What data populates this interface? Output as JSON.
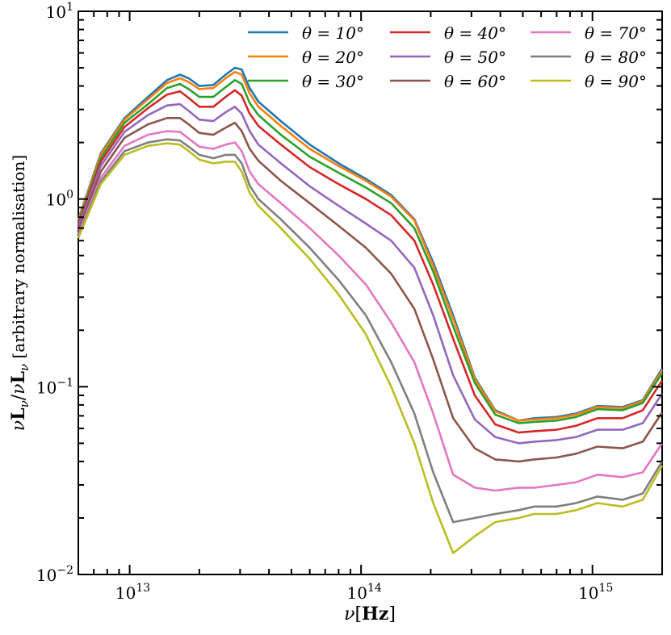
{
  "chart_data": {
    "type": "line",
    "xscale": "log",
    "yscale": "log",
    "xlim": [
      6000000000000,
      2000000000000000
    ],
    "ylim": [
      0.01,
      10
    ],
    "xlabel": "ν[Hz]",
    "ylabel": "νLν/νLν [arbitrary normalisation]",
    "x_ticks": [
      {
        "value": 10000000000000,
        "base": "10",
        "exp": "13"
      },
      {
        "value": 100000000000000,
        "base": "10",
        "exp": "14"
      },
      {
        "value": 1000000000000000,
        "base": "10",
        "exp": "15"
      }
    ],
    "y_ticks": [
      {
        "value": 0.01,
        "base": "10",
        "exp": "−2"
      },
      {
        "value": 0.1,
        "base": "10",
        "exp": "−1"
      },
      {
        "value": 1,
        "base": "10",
        "exp": "0"
      },
      {
        "value": 10,
        "base": "10",
        "exp": "1"
      }
    ],
    "legend_position": "top-right",
    "x": [
      6000000000000.0,
      7500000000000.0,
      9500000000000.0,
      12000000000000.0,
      14500000000000.0,
      16500000000000.0,
      18000000000000.0,
      20000000000000.0,
      23000000000000.0,
      26000000000000.0,
      28500000000000.0,
      30500000000000.0,
      33000000000000.0,
      36000000000000.0,
      45000000000000.0,
      60000000000000.0,
      80000000000000.0,
      105000000000000.0,
      135000000000000.0,
      170000000000000.0,
      205000000000000.0,
      250000000000000.0,
      310000000000000.0,
      380000000000000.0,
      480000000000000.0,
      560000000000000.0,
      700000000000000.0,
      850000000000000.0,
      1050000000000000.0,
      1350000000000000.0,
      1650000000000000.0,
      2000000000000000.0
    ],
    "series": [
      {
        "name": "θ = 10°",
        "legend_label": "θ = 10°",
        "color": "#1f77b4",
        "values": [
          0.78,
          1.75,
          2.7,
          3.5,
          4.3,
          4.6,
          4.4,
          4.0,
          4.05,
          4.6,
          5.0,
          4.9,
          3.9,
          3.3,
          2.6,
          1.95,
          1.55,
          1.28,
          1.05,
          0.78,
          0.46,
          0.24,
          0.112,
          0.075,
          0.066,
          0.068,
          0.069,
          0.072,
          0.079,
          0.078,
          0.085,
          0.125
        ]
      },
      {
        "name": "θ = 20°",
        "legend_label": "θ = 20°",
        "color": "#ff7f0e",
        "values": [
          0.77,
          1.72,
          2.65,
          3.4,
          4.15,
          4.4,
          4.2,
          3.85,
          3.9,
          4.4,
          4.75,
          4.6,
          3.65,
          3.1,
          2.45,
          1.85,
          1.5,
          1.25,
          1.03,
          0.77,
          0.44,
          0.23,
          0.11,
          0.074,
          0.066,
          0.067,
          0.068,
          0.071,
          0.078,
          0.077,
          0.084,
          0.122
        ]
      },
      {
        "name": "θ = 30°",
        "legend_label": "θ = 30°",
        "color": "#2ca02c",
        "values": [
          0.75,
          1.65,
          2.55,
          3.2,
          3.9,
          4.1,
          3.85,
          3.5,
          3.5,
          3.95,
          4.3,
          4.1,
          3.25,
          2.8,
          2.2,
          1.68,
          1.38,
          1.15,
          0.95,
          0.7,
          0.41,
          0.21,
          0.105,
          0.071,
          0.064,
          0.065,
          0.066,
          0.069,
          0.076,
          0.075,
          0.082,
          0.118
        ]
      },
      {
        "name": "θ = 40°",
        "legend_label": "θ = 40°",
        "color": "#d62728",
        "values": [
          0.73,
          1.58,
          2.42,
          3.05,
          3.6,
          3.75,
          3.45,
          3.1,
          3.1,
          3.5,
          3.8,
          3.55,
          2.85,
          2.45,
          1.95,
          1.48,
          1.2,
          1.0,
          0.82,
          0.6,
          0.35,
          0.18,
          0.09,
          0.063,
          0.057,
          0.058,
          0.059,
          0.062,
          0.068,
          0.068,
          0.075,
          0.108
        ]
      },
      {
        "name": "θ = 50°",
        "legend_label": "θ = 50°",
        "color": "#9467bd",
        "values": [
          0.71,
          1.5,
          2.28,
          2.8,
          3.15,
          3.2,
          2.95,
          2.65,
          2.6,
          2.9,
          3.1,
          2.85,
          2.3,
          1.95,
          1.55,
          1.17,
          0.92,
          0.74,
          0.6,
          0.43,
          0.24,
          0.115,
          0.067,
          0.054,
          0.05,
          0.051,
          0.052,
          0.054,
          0.059,
          0.059,
          0.064,
          0.092
        ]
      },
      {
        "name": "θ = 60°",
        "legend_label": "θ = 60°",
        "color": "#8c564b",
        "values": [
          0.68,
          1.4,
          2.12,
          2.5,
          2.7,
          2.7,
          2.5,
          2.25,
          2.2,
          2.4,
          2.55,
          2.3,
          1.85,
          1.6,
          1.25,
          0.95,
          0.72,
          0.55,
          0.4,
          0.26,
          0.14,
          0.068,
          0.047,
          0.041,
          0.04,
          0.041,
          0.042,
          0.044,
          0.048,
          0.047,
          0.051,
          0.073
        ]
      },
      {
        "name": "θ = 70°",
        "legend_label": "θ = 70°",
        "color": "#e377c2",
        "values": [
          0.65,
          1.3,
          1.92,
          2.2,
          2.3,
          2.28,
          2.1,
          1.9,
          1.85,
          1.95,
          2.0,
          1.8,
          1.4,
          1.2,
          0.95,
          0.7,
          0.5,
          0.35,
          0.22,
          0.135,
          0.072,
          0.034,
          0.029,
          0.028,
          0.029,
          0.029,
          0.03,
          0.031,
          0.034,
          0.033,
          0.035,
          0.05
        ]
      },
      {
        "name": "θ = 80°",
        "legend_label": "θ = 80°",
        "color": "#7f7f7f",
        "values": [
          0.63,
          1.24,
          1.8,
          2.0,
          2.08,
          2.05,
          1.9,
          1.72,
          1.65,
          1.72,
          1.72,
          1.55,
          1.18,
          1.0,
          0.78,
          0.55,
          0.37,
          0.24,
          0.135,
          0.072,
          0.035,
          0.019,
          0.02,
          0.021,
          0.022,
          0.023,
          0.023,
          0.024,
          0.026,
          0.025,
          0.027,
          0.04
        ]
      },
      {
        "name": "θ = 90°",
        "legend_label": "θ = 90°",
        "color": "#bcbd22",
        "values": [
          0.62,
          1.2,
          1.72,
          1.92,
          1.98,
          1.95,
          1.8,
          1.62,
          1.55,
          1.58,
          1.58,
          1.4,
          1.08,
          0.92,
          0.7,
          0.48,
          0.31,
          0.19,
          0.1,
          0.05,
          0.024,
          0.013,
          0.016,
          0.019,
          0.02,
          0.021,
          0.021,
          0.022,
          0.024,
          0.023,
          0.025,
          0.038
        ]
      }
    ]
  }
}
